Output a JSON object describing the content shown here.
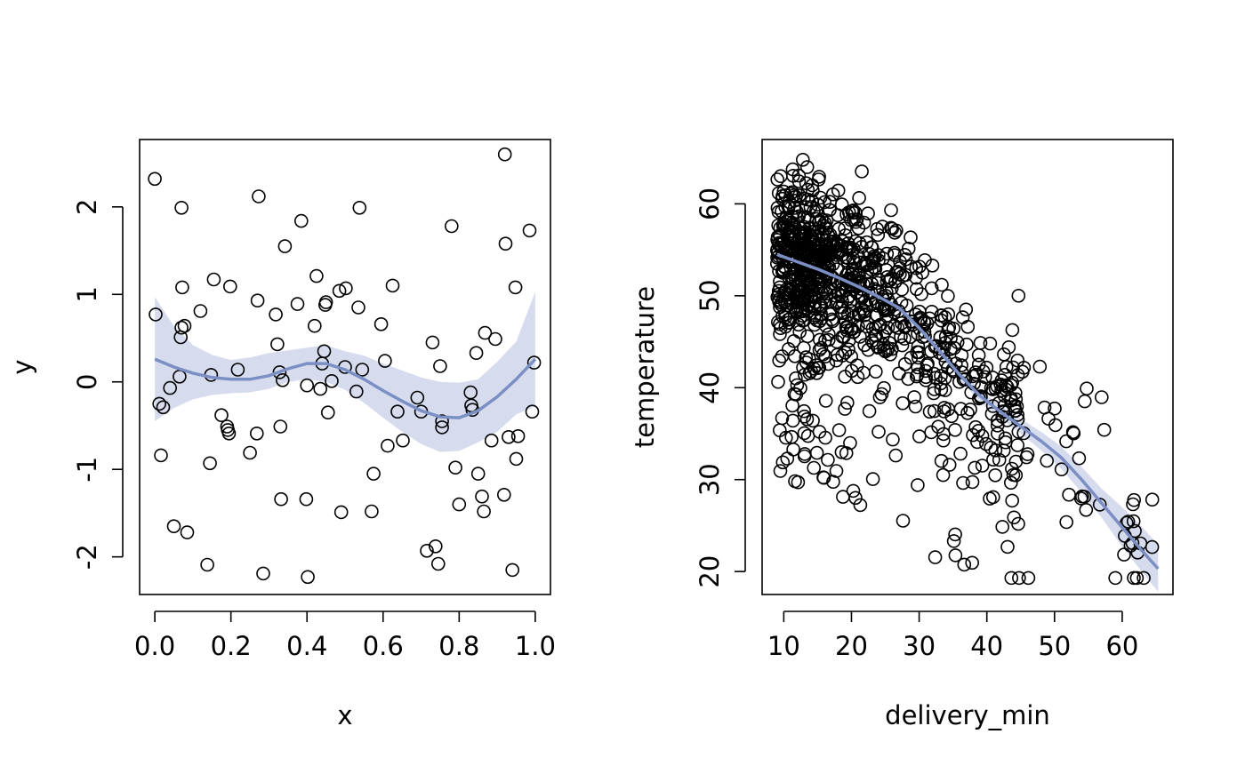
{
  "chart_data": [
    {
      "type": "scatter",
      "title": "",
      "xlabel": "x",
      "ylabel": "y",
      "xlim": [
        -0.04,
        1.04
      ],
      "ylim": [
        -2.43,
        2.77
      ],
      "xticks": [
        0.0,
        0.2,
        0.4,
        0.6,
        0.8,
        1.0
      ],
      "xtick_labels": [
        "0.0",
        "0.2",
        "0.4",
        "0.6",
        "0.8",
        "1.0"
      ],
      "yticks": [
        -2,
        -1,
        0,
        1,
        2
      ],
      "ytick_labels": [
        "-2",
        "-1",
        "0",
        "1",
        "2"
      ],
      "grid": false,
      "points_color": "#000000",
      "smooth_color": "#7b8fc4",
      "band_color": "#d6dcee",
      "points": [
        [
          0.0,
          2.32
        ],
        [
          0.002,
          0.77
        ],
        [
          0.012,
          -0.25
        ],
        [
          0.016,
          -0.84
        ],
        [
          0.022,
          -0.29
        ],
        [
          0.04,
          -0.07
        ],
        [
          0.05,
          -1.65
        ],
        [
          0.065,
          0.06
        ],
        [
          0.068,
          0.51
        ],
        [
          0.07,
          0.62
        ],
        [
          0.07,
          1.99
        ],
        [
          0.072,
          1.08
        ],
        [
          0.078,
          0.64
        ],
        [
          0.085,
          -1.72
        ],
        [
          0.12,
          0.81
        ],
        [
          0.138,
          -2.09
        ],
        [
          0.145,
          -0.93
        ],
        [
          0.148,
          0.08
        ],
        [
          0.155,
          1.17
        ],
        [
          0.175,
          -0.38
        ],
        [
          0.19,
          -0.51
        ],
        [
          0.192,
          -0.55
        ],
        [
          0.195,
          -0.59
        ],
        [
          0.198,
          1.09
        ],
        [
          0.218,
          0.14
        ],
        [
          0.25,
          -0.81
        ],
        [
          0.268,
          -0.59
        ],
        [
          0.27,
          0.93
        ],
        [
          0.273,
          2.12
        ],
        [
          0.285,
          -2.19
        ],
        [
          0.318,
          0.77
        ],
        [
          0.322,
          0.43
        ],
        [
          0.328,
          0.11
        ],
        [
          0.33,
          -0.51
        ],
        [
          0.332,
          -1.34
        ],
        [
          0.336,
          0.02
        ],
        [
          0.342,
          1.55
        ],
        [
          0.375,
          0.89
        ],
        [
          0.385,
          1.84
        ],
        [
          0.398,
          -1.34
        ],
        [
          0.4,
          -0.04
        ],
        [
          0.402,
          -2.23
        ],
        [
          0.42,
          0.64
        ],
        [
          0.425,
          1.21
        ],
        [
          0.435,
          -0.08
        ],
        [
          0.44,
          0.21
        ],
        [
          0.445,
          0.35
        ],
        [
          0.448,
          0.88
        ],
        [
          0.45,
          0.91
        ],
        [
          0.455,
          -0.35
        ],
        [
          0.465,
          0.01
        ],
        [
          0.485,
          1.04
        ],
        [
          0.49,
          -1.49
        ],
        [
          0.502,
          1.07
        ],
        [
          0.5,
          0.17
        ],
        [
          0.53,
          -0.11
        ],
        [
          0.535,
          0.85
        ],
        [
          0.538,
          1.99
        ],
        [
          0.545,
          0.14
        ],
        [
          0.57,
          -1.48
        ],
        [
          0.575,
          -1.05
        ],
        [
          0.595,
          0.66
        ],
        [
          0.605,
          0.24
        ],
        [
          0.612,
          -0.73
        ],
        [
          0.625,
          1.1
        ],
        [
          0.638,
          -0.34
        ],
        [
          0.652,
          -0.67
        ],
        [
          0.69,
          -0.18
        ],
        [
          0.7,
          -0.34
        ],
        [
          0.715,
          -1.93
        ],
        [
          0.73,
          0.45
        ],
        [
          0.738,
          -1.88
        ],
        [
          0.745,
          -2.08
        ],
        [
          0.75,
          0.18
        ],
        [
          0.755,
          -0.45
        ],
        [
          0.755,
          -0.52
        ],
        [
          0.78,
          1.78
        ],
        [
          0.79,
          -0.98
        ],
        [
          0.8,
          -1.4
        ],
        [
          0.83,
          -0.12
        ],
        [
          0.832,
          -0.27
        ],
        [
          0.835,
          -0.32
        ],
        [
          0.845,
          0.33
        ],
        [
          0.85,
          -1.05
        ],
        [
          0.86,
          -1.31
        ],
        [
          0.865,
          -1.48
        ],
        [
          0.868,
          0.56
        ],
        [
          0.885,
          -0.67
        ],
        [
          0.895,
          0.49
        ],
        [
          0.918,
          -1.29
        ],
        [
          0.92,
          2.6
        ],
        [
          0.922,
          1.58
        ],
        [
          0.93,
          -0.63
        ],
        [
          0.94,
          -2.15
        ],
        [
          0.948,
          1.08
        ],
        [
          0.95,
          -0.88
        ],
        [
          0.955,
          -0.62
        ],
        [
          0.985,
          1.73
        ],
        [
          0.992,
          -0.34
        ],
        [
          0.997,
          0.22
        ]
      ],
      "smooth": {
        "x": [
          0.0,
          0.05,
          0.1,
          0.15,
          0.2,
          0.25,
          0.3,
          0.35,
          0.4,
          0.45,
          0.5,
          0.55,
          0.6,
          0.65,
          0.7,
          0.75,
          0.8,
          0.85,
          0.9,
          0.95,
          1.0
        ],
        "y": [
          0.26,
          0.17,
          0.1,
          0.05,
          0.03,
          0.03,
          0.07,
          0.15,
          0.21,
          0.21,
          0.14,
          0.03,
          -0.1,
          -0.22,
          -0.33,
          -0.4,
          -0.41,
          -0.33,
          -0.17,
          0.03,
          0.26
        ],
        "lower": [
          -0.45,
          -0.3,
          -0.2,
          -0.15,
          -0.13,
          -0.12,
          -0.08,
          -0.0,
          0.03,
          0.0,
          -0.09,
          -0.24,
          -0.41,
          -0.57,
          -0.71,
          -0.8,
          -0.79,
          -0.69,
          -0.57,
          -0.37,
          -0.28
        ],
        "upper": [
          0.97,
          0.64,
          0.42,
          0.31,
          0.25,
          0.28,
          0.33,
          0.36,
          0.39,
          0.42,
          0.35,
          0.3,
          0.21,
          0.13,
          0.05,
          -0.0,
          -0.01,
          0.03,
          0.23,
          0.46,
          1.03
        ]
      }
    },
    {
      "type": "scatter",
      "title": "",
      "xlabel": "delivery_min",
      "ylabel": "temperature",
      "xlim": [
        6.8,
        67.5
      ],
      "ylim": [
        17.5,
        67.0
      ],
      "xticks": [
        10,
        20,
        30,
        40,
        50,
        60
      ],
      "xtick_labels": [
        "10",
        "20",
        "30",
        "40",
        "50",
        "60"
      ],
      "yticks": [
        20,
        30,
        40,
        50,
        60
      ],
      "ytick_labels": [
        "20",
        "30",
        "40",
        "50",
        "60"
      ],
      "grid": false,
      "points_color": "#000000",
      "smooth_color": "#7b8fc4",
      "band_color": "#d6dcee",
      "point_generation": {
        "approx_count": 1000,
        "description_of_distribution": "dense cluster near x 9-30 at y 45-64, declining trend to x 65 y 20"
      },
      "smooth": {
        "x": [
          9,
          12,
          15,
          18,
          21,
          24,
          27,
          30,
          33,
          36,
          39,
          42,
          45,
          48,
          51,
          54,
          57,
          60,
          63,
          65.3
        ],
        "y": [
          54.5,
          53.7,
          52.9,
          52.0,
          51.0,
          49.9,
          48.7,
          46.5,
          44.0,
          41.4,
          39.1,
          37.4,
          35.8,
          34.2,
          32.4,
          30.0,
          27.4,
          24.8,
          22.2,
          20.3
        ],
        "lower": [
          53.6,
          53.1,
          52.4,
          51.5,
          50.5,
          49.4,
          48.2,
          46.0,
          43.5,
          40.8,
          38.5,
          36.7,
          35.0,
          33.2,
          31.2,
          28.6,
          25.8,
          22.7,
          19.9,
          17.8
        ],
        "upper": [
          55.6,
          54.3,
          53.4,
          52.5,
          51.5,
          50.4,
          49.2,
          47.0,
          44.5,
          42.0,
          39.7,
          38.1,
          36.6,
          35.2,
          33.6,
          31.4,
          29.0,
          27.0,
          24.8,
          22.9
        ]
      }
    }
  ]
}
